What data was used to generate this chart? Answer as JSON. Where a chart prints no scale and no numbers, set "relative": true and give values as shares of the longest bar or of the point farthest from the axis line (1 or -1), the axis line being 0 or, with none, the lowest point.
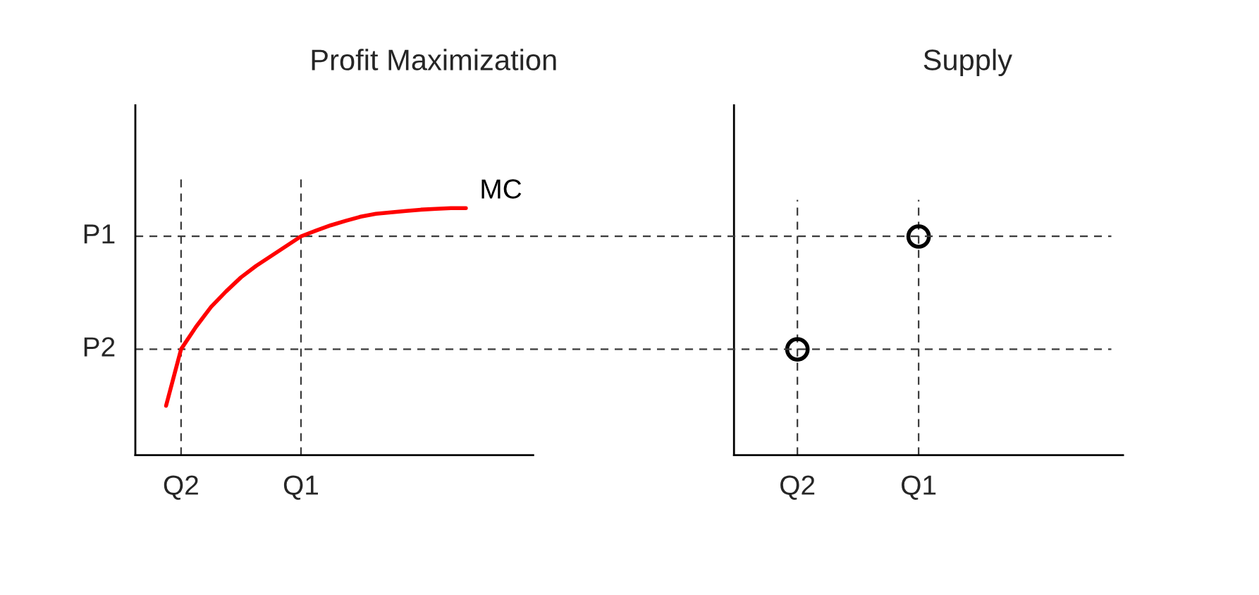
{
  "chart_data": [
    {
      "type": "line",
      "title": "Profit Maximization",
      "relative": true,
      "categories": [
        null,
        "Q2",
        null,
        null,
        null,
        null,
        null,
        null,
        null,
        "Q1",
        null,
        null,
        null,
        null,
        null,
        null,
        null,
        null,
        null,
        null,
        null
      ],
      "series": [
        {
          "name": "MC",
          "color": "#ff0000",
          "values": [
            0.2,
            0.429,
            0.52,
            0.6,
            0.663,
            0.72,
            0.766,
            0.806,
            0.846,
            0.886,
            0.909,
            0.931,
            0.949,
            0.966,
            0.977,
            0.983,
            0.989,
            0.994,
            0.997,
            1,
            1
          ]
        }
      ],
      "ref_lines": [
        {
          "axis": "y",
          "value": 0.429,
          "label": "P2",
          "line_style": "dashed"
        },
        {
          "axis": "y",
          "value": 0.886,
          "label": "P1",
          "line_style": "dashed"
        }
      ],
      "grid": "x",
      "line_style": "solid"
    },
    {
      "type": "scatter",
      "title": "Supply",
      "relative": true,
      "categories": [
        "Q2",
        "Q1"
      ],
      "series": [
        {
          "color": "#000000",
          "values": [
            0.484,
            1
          ]
        }
      ],
      "grid": "x",
      "marker": "circle"
    }
  ]
}
